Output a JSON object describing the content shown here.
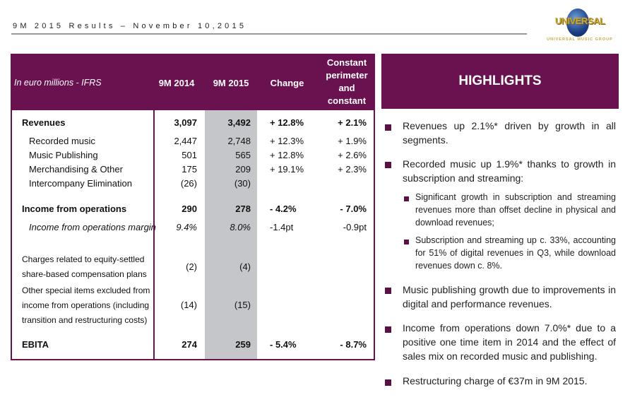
{
  "header": {
    "title": "9M 2015 Results – November 10,2015",
    "logo_text": "UNIVERSAL",
    "logo_subtext": "UNIVERSAL MUSIC GROUP"
  },
  "table": {
    "headers": [
      "In euro millions - IFRS",
      "9M 2014",
      "9M 2015",
      "Change",
      "Constant perimeter and constant currency *"
    ],
    "rows": [
      {
        "label": "Revenues",
        "v2014": "3,097",
        "v2015": "3,492",
        "change": "+ 12.8%",
        "constant": "+ 2.1%"
      },
      {
        "label": "Recorded music",
        "v2014": "2,447",
        "v2015": "2,748",
        "change": "+ 12.3%",
        "constant": "+ 1.9%"
      },
      {
        "label": "Music Publishing",
        "v2014": "501",
        "v2015": "565",
        "change": "+ 12.8%",
        "constant": "+ 2.6%"
      },
      {
        "label": "Merchandising & Other",
        "v2014": "175",
        "v2015": "209",
        "change": "+ 19.1%",
        "constant": "+ 2.3%"
      },
      {
        "label": "Intercompany Elimination",
        "v2014": "(26)",
        "v2015": "(30)",
        "change": "",
        "constant": ""
      },
      {
        "label": "Income from operations",
        "v2014": "290",
        "v2015": "278",
        "change": "- 4.2%",
        "constant": "- 7.0%"
      },
      {
        "label": "Income from operations margin",
        "v2014": "9.4%",
        "v2015": "8.0%",
        "change": "-1.4pt",
        "constant": "-0.9pt"
      },
      {
        "label": "Charges related to equity-settled share-based compensation plans",
        "v2014": "(2)",
        "v2015": "(4)",
        "change": "",
        "constant": ""
      },
      {
        "label": "Other special items excluded from income from operations (including transition and restructuring costs)",
        "v2014": "(14)",
        "v2015": "(15)",
        "change": "",
        "constant": ""
      },
      {
        "label": "EBITA",
        "v2014": "274",
        "v2015": "259",
        "change": "- 5.4%",
        "constant": "- 8.7%"
      }
    ]
  },
  "highlights": {
    "title": "HIGHLIGHTS",
    "bullets": [
      "Revenues up 2.1%* driven by growth in all segments.",
      "Recorded music up 1.9%* thanks to growth in subscription and streaming:",
      "Music publishing growth due to improvements in digital and performance revenues.",
      "Income from operations down 7.0%* due to a positive one time item in 2014 and the effect of sales mix on recorded music and publishing.",
      "Restructuring charge of €37m in 9M 2015."
    ],
    "sub_bullets": [
      "Significant growth in subscription and streaming revenues more than offset decline in physical and download revenues;",
      "Subscription and streaming up c. 33%, accounting for 51% of digital revenues in Q3, while download revenues down c. 8%."
    ]
  },
  "colors": {
    "brand_purple": "#6a1250",
    "highlight_column": "#c5c6ca",
    "logo_gold": "#c9a938"
  }
}
